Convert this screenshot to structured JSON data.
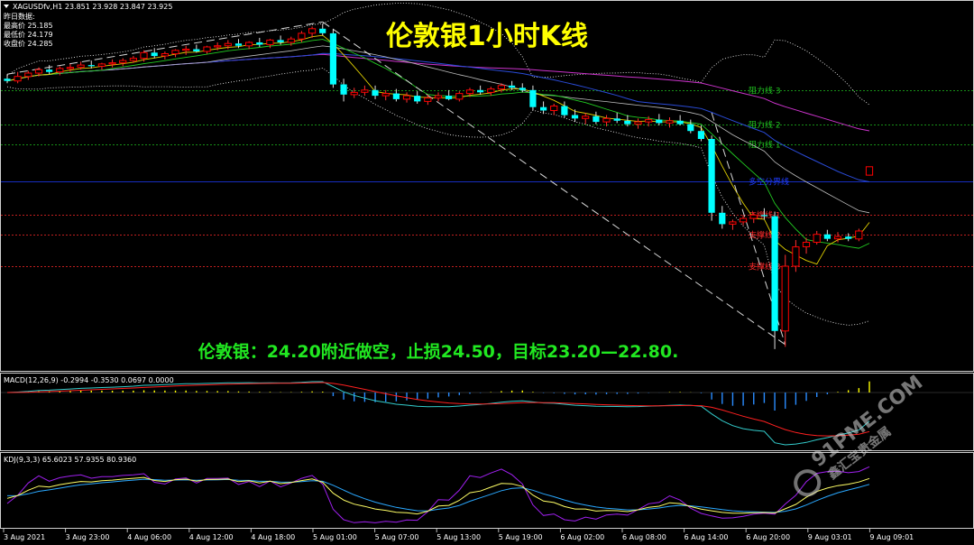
{
  "symbol_line": {
    "symbol": "XAGUSDfv,H1",
    "open": "23.851",
    "high": "23.928",
    "low": "23.847",
    "close": "23.925"
  },
  "prev_day_box": {
    "heading": "昨日数据:",
    "rows": [
      "最高价 25.185",
      "最低价 24.179",
      "收盘价 24.285"
    ]
  },
  "chart_title": "伦敦银1小时K线",
  "trade_note": "伦敦银：24.20附近做空，止损24.50，目标23.20—22.80.",
  "levels": [
    {
      "label": "阻力线 3",
      "value": 24.6,
      "color": "#1fbf1f",
      "style": "dashed"
    },
    {
      "label": "阻力线 2",
      "value": 24.3,
      "color": "#1fbf1f",
      "style": "dashed"
    },
    {
      "label": "阻力线 1",
      "value": 24.12,
      "color": "#1fbf1f",
      "style": "dashed"
    },
    {
      "label": "多空分界线",
      "value": 23.8,
      "color": "#1f3cff",
      "style": "solid"
    },
    {
      "label": "支撑线 1",
      "value": 23.5,
      "color": "#ff2a2a",
      "style": "dashed"
    },
    {
      "label": "支撑线 2",
      "value": 23.33,
      "color": "#ff2a2a",
      "style": "dashed"
    },
    {
      "label": "支撑线 3",
      "value": 23.05,
      "color": "#ff2a2a",
      "style": "dashed"
    }
  ],
  "chart_data": [
    {
      "type": "candlestick",
      "panel": "main",
      "ylim": [
        22.2,
        25.25
      ],
      "x_tick_labels": [
        "3 Aug 2021",
        "3 Aug 23:00",
        "4 Aug 06:00",
        "4 Aug 12:00",
        "4 Aug 18:00",
        "5 Aug 01:00",
        "5 Aug 07:00",
        "5 Aug 13:00",
        "5 Aug 19:00",
        "6 Aug 02:00",
        "6 Aug 08:00",
        "6 Aug 14:00",
        "6 Aug 20:00",
        "9 Aug 03:01",
        "9 Aug 09:01"
      ],
      "bull_color": "#ff0000",
      "bear_color": "#00ffff",
      "candles": [
        [
          24.7,
          24.74,
          24.66,
          24.68
        ],
        [
          24.68,
          24.76,
          24.66,
          24.72
        ],
        [
          24.72,
          24.77,
          24.69,
          24.75
        ],
        [
          24.75,
          24.8,
          24.72,
          24.78
        ],
        [
          24.78,
          24.82,
          24.74,
          24.76
        ],
        [
          24.76,
          24.81,
          24.73,
          24.79
        ],
        [
          24.79,
          24.83,
          24.76,
          24.8
        ],
        [
          24.8,
          24.85,
          24.78,
          24.82
        ],
        [
          24.82,
          24.86,
          24.79,
          24.81
        ],
        [
          24.81,
          24.84,
          24.78,
          24.83
        ],
        [
          24.83,
          24.87,
          24.8,
          24.84
        ],
        [
          24.84,
          24.88,
          24.81,
          24.86
        ],
        [
          24.86,
          24.9,
          24.84,
          24.88
        ],
        [
          24.88,
          24.95,
          24.85,
          24.93
        ],
        [
          24.93,
          24.97,
          24.88,
          24.9
        ],
        [
          24.9,
          24.94,
          24.87,
          24.92
        ],
        [
          24.92,
          24.96,
          24.89,
          24.95
        ],
        [
          24.95,
          24.99,
          24.91,
          24.96
        ],
        [
          24.96,
          25.0,
          24.93,
          24.94
        ],
        [
          24.94,
          24.99,
          24.92,
          24.98
        ],
        [
          24.98,
          25.02,
          24.95,
          24.99
        ],
        [
          24.99,
          25.04,
          24.96,
          25.01
        ],
        [
          25.01,
          25.05,
          24.97,
          24.99
        ],
        [
          24.99,
          25.03,
          24.96,
          25.02
        ],
        [
          25.02,
          25.06,
          24.98,
          25.0
        ],
        [
          25.0,
          25.05,
          24.97,
          25.04
        ],
        [
          25.04,
          25.08,
          25.0,
          25.02
        ],
        [
          25.02,
          25.07,
          24.99,
          25.05
        ],
        [
          25.05,
          25.12,
          25.02,
          25.1
        ],
        [
          25.1,
          25.16,
          25.06,
          25.14
        ],
        [
          25.14,
          25.185,
          25.08,
          25.1
        ],
        [
          25.1,
          25.14,
          24.62,
          24.65
        ],
        [
          24.65,
          24.7,
          24.5,
          24.56
        ],
        [
          24.56,
          24.62,
          24.53,
          24.58
        ],
        [
          24.58,
          24.64,
          24.55,
          24.6
        ],
        [
          24.6,
          24.64,
          24.52,
          24.55
        ],
        [
          24.55,
          24.6,
          24.51,
          24.57
        ],
        [
          24.57,
          24.61,
          24.5,
          24.52
        ],
        [
          24.52,
          24.58,
          24.49,
          24.55
        ],
        [
          24.55,
          24.59,
          24.48,
          24.5
        ],
        [
          24.5,
          24.56,
          24.47,
          24.53
        ],
        [
          24.53,
          24.58,
          24.5,
          24.55
        ],
        [
          24.55,
          24.6,
          24.51,
          24.52
        ],
        [
          24.52,
          24.59,
          24.5,
          24.57
        ],
        [
          24.57,
          24.62,
          24.54,
          24.6
        ],
        [
          24.6,
          24.64,
          24.56,
          24.58
        ],
        [
          24.58,
          24.63,
          24.55,
          24.61
        ],
        [
          24.61,
          24.66,
          24.58,
          24.64
        ],
        [
          24.64,
          24.68,
          24.6,
          24.62
        ],
        [
          24.62,
          24.66,
          24.58,
          24.6
        ],
        [
          24.6,
          24.64,
          24.42,
          24.45
        ],
        [
          24.45,
          24.5,
          24.39,
          24.42
        ],
        [
          24.42,
          24.48,
          24.38,
          24.46
        ],
        [
          24.46,
          24.5,
          24.36,
          24.38
        ],
        [
          24.38,
          24.43,
          24.32,
          24.35
        ],
        [
          24.35,
          24.4,
          24.3,
          24.37
        ],
        [
          24.37,
          24.41,
          24.3,
          24.32
        ],
        [
          24.32,
          24.38,
          24.28,
          24.35
        ],
        [
          24.35,
          24.4,
          24.31,
          24.33
        ],
        [
          24.33,
          24.38,
          24.28,
          24.3
        ],
        [
          24.3,
          24.35,
          24.26,
          24.32
        ],
        [
          24.32,
          24.37,
          24.28,
          24.34
        ],
        [
          24.34,
          24.39,
          24.29,
          24.31
        ],
        [
          24.31,
          24.36,
          24.27,
          24.33
        ],
        [
          24.33,
          24.38,
          24.29,
          24.3
        ],
        [
          24.3,
          24.34,
          24.22,
          24.24
        ],
        [
          24.24,
          24.29,
          24.15,
          24.17
        ],
        [
          24.17,
          24.2,
          23.45,
          23.52
        ],
        [
          23.52,
          23.58,
          23.38,
          23.42
        ],
        [
          23.42,
          23.46,
          23.37,
          23.44
        ],
        [
          23.44,
          23.5,
          23.41,
          23.47
        ],
        [
          23.47,
          23.52,
          23.43,
          23.5
        ],
        [
          23.5,
          23.56,
          23.46,
          23.49
        ],
        [
          23.49,
          23.53,
          22.32,
          22.48
        ],
        [
          22.48,
          23.15,
          22.34,
          23.05
        ],
        [
          23.05,
          23.28,
          23.0,
          23.22
        ],
        [
          23.22,
          23.3,
          23.16,
          23.26
        ],
        [
          23.26,
          23.36,
          23.24,
          23.33
        ],
        [
          23.33,
          23.37,
          23.27,
          23.29
        ],
        [
          23.29,
          23.35,
          23.26,
          23.31
        ],
        [
          23.31,
          23.34,
          23.27,
          23.29
        ],
        [
          23.29,
          23.38,
          23.27,
          23.36
        ],
        [
          23.851,
          23.928,
          23.847,
          23.925
        ]
      ]
    },
    {
      "type": "bar+line",
      "panel": "MACD",
      "title": "MACD(12,26,9) -0.2994 -0.3530 0.0697 0.0000"
    },
    {
      "type": "line",
      "panel": "KDJ",
      "title": "KDJ(9,3,3) 65.6023 57.9355 80.9360"
    }
  ],
  "watermark": {
    "url": "91PME.COM",
    "name": "鑫汇宝贵金属"
  }
}
